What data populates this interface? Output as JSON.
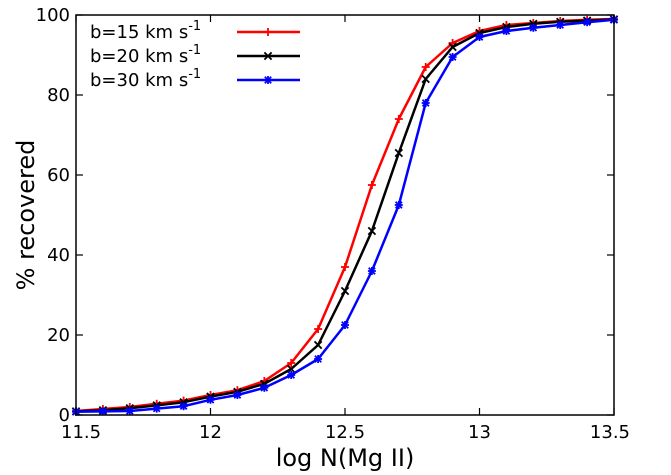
{
  "chart_data": {
    "type": "line",
    "xlabel": "log N(Mg II)",
    "ylabel": "% recovered",
    "xlim": [
      11.5,
      13.5
    ],
    "ylim": [
      0,
      100
    ],
    "xticks": [
      "11.5",
      "12",
      "12.5",
      "13",
      "13.5"
    ],
    "yticks": [
      "0",
      "20",
      "40",
      "60",
      "80",
      "100"
    ],
    "grid": false,
    "legend_position": "top-left",
    "x": [
      11.5,
      11.6,
      11.7,
      11.8,
      11.9,
      12.0,
      12.1,
      12.2,
      12.3,
      12.4,
      12.5,
      12.6,
      12.7,
      12.8,
      12.9,
      13.0,
      13.1,
      13.2,
      13.3,
      13.4,
      13.5
    ],
    "series": [
      {
        "name": "b=15 km s",
        "name_superscript": "-1",
        "color": "#ff0000",
        "marker": "plus",
        "values": [
          1.0,
          1.5,
          2.0,
          2.8,
          3.6,
          5.0,
          6.2,
          8.5,
          13.0,
          21.5,
          37.0,
          57.5,
          74.0,
          87.0,
          93.0,
          96.0,
          97.5,
          98.0,
          98.5,
          98.8,
          99.0
        ]
      },
      {
        "name": "b=20 km s",
        "name_superscript": "-1",
        "color": "#000000",
        "marker": "x",
        "values": [
          0.9,
          1.2,
          1.7,
          2.4,
          3.2,
          4.6,
          5.8,
          7.8,
          11.5,
          17.5,
          31.0,
          46.0,
          65.5,
          84.0,
          92.0,
          95.5,
          97.0,
          97.8,
          98.3,
          98.6,
          98.9
        ]
      },
      {
        "name": "b=30 km s",
        "name_superscript": "-1",
        "color": "#0000ff",
        "marker": "star",
        "values": [
          0.8,
          0.9,
          1.0,
          1.6,
          2.2,
          3.8,
          5.0,
          6.8,
          10.0,
          14.0,
          22.5,
          36.0,
          52.5,
          78.0,
          89.5,
          94.5,
          96.0,
          96.8,
          97.5,
          98.2,
          98.8
        ]
      }
    ]
  }
}
